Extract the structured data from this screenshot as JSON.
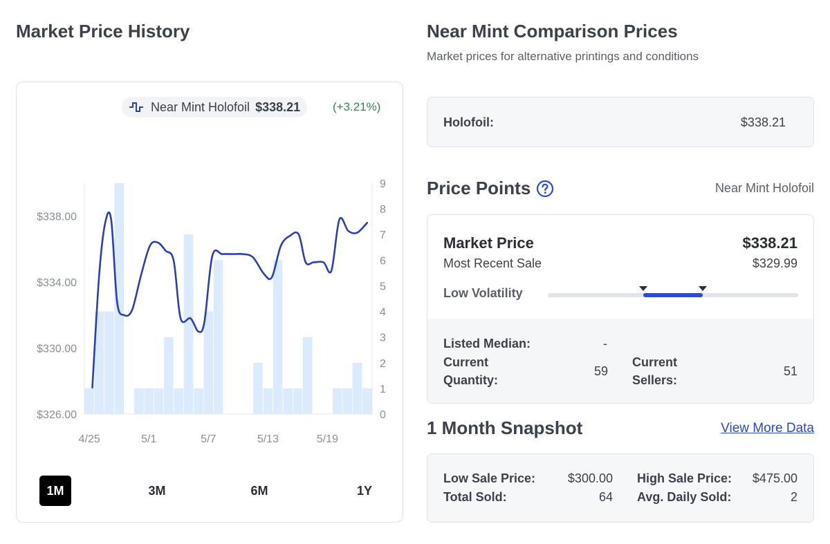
{
  "left": {
    "title": "Market Price History",
    "legend": {
      "name": "Near Mint Holofoil",
      "price": "$338.21",
      "change": "(+3.21%)",
      "line_color": "#2b3fb3",
      "bar_color": "#dbeafd"
    },
    "ranges": [
      {
        "label": "1M",
        "active": true
      },
      {
        "label": "3M",
        "active": false
      },
      {
        "label": "6M",
        "active": false
      },
      {
        "label": "1Y",
        "active": false
      }
    ]
  },
  "chart_data": {
    "type": "line",
    "y_left": {
      "ticks": [
        "$338.00",
        "$334.00",
        "$330.00",
        "$326.00"
      ],
      "tick_values": [
        338,
        334,
        330,
        326
      ],
      "range": [
        326,
        340
      ]
    },
    "y_right": {
      "ticks": [
        "9",
        "8",
        "7",
        "6",
        "5",
        "4",
        "3",
        "2",
        "1",
        "0"
      ],
      "tick_values": [
        9,
        8,
        7,
        6,
        5,
        4,
        3,
        2,
        1,
        0
      ],
      "range": [
        0,
        9
      ]
    },
    "x_ticks": [
      {
        "label": "4/25",
        "day": 0
      },
      {
        "label": "5/1",
        "day": 6
      },
      {
        "label": "5/7",
        "day": 12
      },
      {
        "label": "5/13",
        "day": 18
      },
      {
        "label": "5/19",
        "day": 24
      }
    ],
    "x_range": [
      -0.5,
      28.5
    ],
    "series": [
      {
        "type": "bar",
        "axis": "right",
        "days": [
          0,
          1,
          2,
          3,
          5,
          6,
          7,
          8,
          9,
          10,
          11,
          12,
          13,
          17,
          18,
          19,
          20,
          21,
          22,
          25,
          26,
          27,
          28
        ],
        "values": [
          1,
          4,
          4,
          9,
          1,
          1,
          1,
          3,
          1,
          7,
          1,
          4,
          6,
          2,
          1,
          6,
          1,
          1,
          3,
          1,
          1,
          2,
          1
        ]
      },
      {
        "type": "line",
        "axis": "left",
        "points": [
          [
            0.3,
            327.6
          ],
          [
            1.0,
            334.5
          ],
          [
            1.6,
            337.6
          ],
          [
            2.2,
            337.8
          ],
          [
            2.8,
            332.8
          ],
          [
            3.5,
            332.0
          ],
          [
            4.3,
            332.3
          ],
          [
            5.2,
            334.4
          ],
          [
            6.1,
            336.2
          ],
          [
            6.9,
            336.4
          ],
          [
            7.7,
            335.9
          ],
          [
            8.5,
            335.3
          ],
          [
            9.2,
            331.8
          ],
          [
            10.2,
            331.8
          ],
          [
            11.0,
            331.0
          ],
          [
            11.6,
            331.6
          ],
          [
            12.4,
            335.6
          ],
          [
            13.4,
            335.7
          ],
          [
            14.5,
            335.7
          ],
          [
            15.5,
            335.7
          ],
          [
            16.5,
            335.5
          ],
          [
            17.6,
            334.5
          ],
          [
            18.4,
            334.3
          ],
          [
            19.3,
            336.2
          ],
          [
            20.2,
            336.8
          ],
          [
            21.1,
            336.9
          ],
          [
            21.8,
            335.2
          ],
          [
            22.6,
            335.2
          ],
          [
            23.6,
            335.2
          ],
          [
            24.4,
            334.7
          ],
          [
            25.2,
            337.8
          ],
          [
            26.1,
            337.1
          ],
          [
            27.0,
            337.0
          ],
          [
            28.0,
            337.6
          ]
        ]
      }
    ],
    "grid": false
  },
  "right": {
    "title": "Near Mint Comparison Prices",
    "subtitle": "Market prices for alternative printings and conditions",
    "holofoil_label": "Holofoil:",
    "holofoil_value": "$338.21",
    "price_points_title": "Price Points",
    "price_points_variant": "Near Mint Holofoil",
    "market_price_label": "Market Price",
    "market_price_value": "$338.21",
    "recent_sale_label": "Most Recent Sale",
    "recent_sale_value": "$329.99",
    "volatility_label": "Low Volatility",
    "volatility": {
      "marker_low": 0.38,
      "marker_high": 0.62
    },
    "listed_median_label": "Listed Median:",
    "listed_median_value": "-",
    "current_quantity_label": "Current Quantity:",
    "current_quantity_value": "59",
    "current_sellers_label": "Current Sellers:",
    "current_sellers_value": "51",
    "snapshot_title": "1 Month Snapshot",
    "snapshot_link": "View More Data",
    "low_sale_label": "Low Sale Price:",
    "low_sale_value": "$300.00",
    "high_sale_label": "High Sale Price:",
    "high_sale_value": "$475.00",
    "total_sold_label": "Total Sold:",
    "total_sold_value": "64",
    "avg_daily_label": "Avg. Daily Sold:",
    "avg_daily_value": "2",
    "accent_color": "#2c4bd6"
  }
}
